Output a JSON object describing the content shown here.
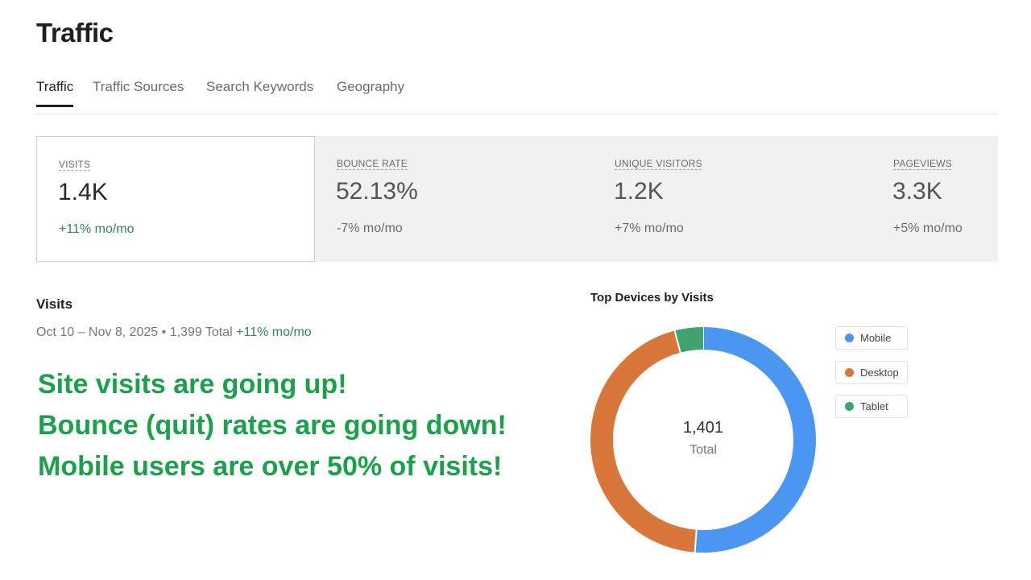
{
  "page": {
    "title": "Traffic"
  },
  "tabs": [
    {
      "label": "Traffic",
      "active": true
    },
    {
      "label": "Traffic Sources",
      "active": false
    },
    {
      "label": "Search Keywords",
      "active": false
    },
    {
      "label": "Geography",
      "active": false
    }
  ],
  "metrics": [
    {
      "label": "VISITS",
      "value": "1.4K",
      "change": "+11% mo/mo"
    },
    {
      "label": "BOUNCE RATE",
      "value": "52.13%",
      "change": "-7% mo/mo"
    },
    {
      "label": "UNIQUE VISITORS",
      "value": "1.2K",
      "change": "+7% mo/mo"
    },
    {
      "label": "PAGEVIEWS",
      "value": "3.3K",
      "change": "+5% mo/mo"
    }
  ],
  "visits": {
    "heading": "Visits",
    "date_range": "Oct 10 – Nov 8, 2025",
    "separator": " • ",
    "total": "1,399 Total",
    "change": "+11% mo/mo"
  },
  "callouts": [
    "Site visits are going up!",
    "Bounce (quit) rates are going down!",
    "Mobile users are over 50% of visits!"
  ],
  "devices": {
    "title": "Top Devices by Visits",
    "center_value": "1,401",
    "center_label": "Total",
    "legend": [
      {
        "label": "Mobile",
        "color": "#4a96f0"
      },
      {
        "label": "Desktop",
        "color": "#d9773a"
      },
      {
        "label": "Tablet",
        "color": "#3fa36f"
      }
    ]
  },
  "colors": {
    "green_text": "#2e8b57",
    "callout_green": "#1aa14a"
  },
  "chart_data": {
    "type": "pie",
    "title": "Top Devices by Visits",
    "categories": [
      "Mobile",
      "Desktop",
      "Tablet"
    ],
    "values": [
      717,
      627,
      57
    ],
    "colors": [
      "#4a96f0",
      "#d9773a",
      "#3fa36f"
    ]
  }
}
